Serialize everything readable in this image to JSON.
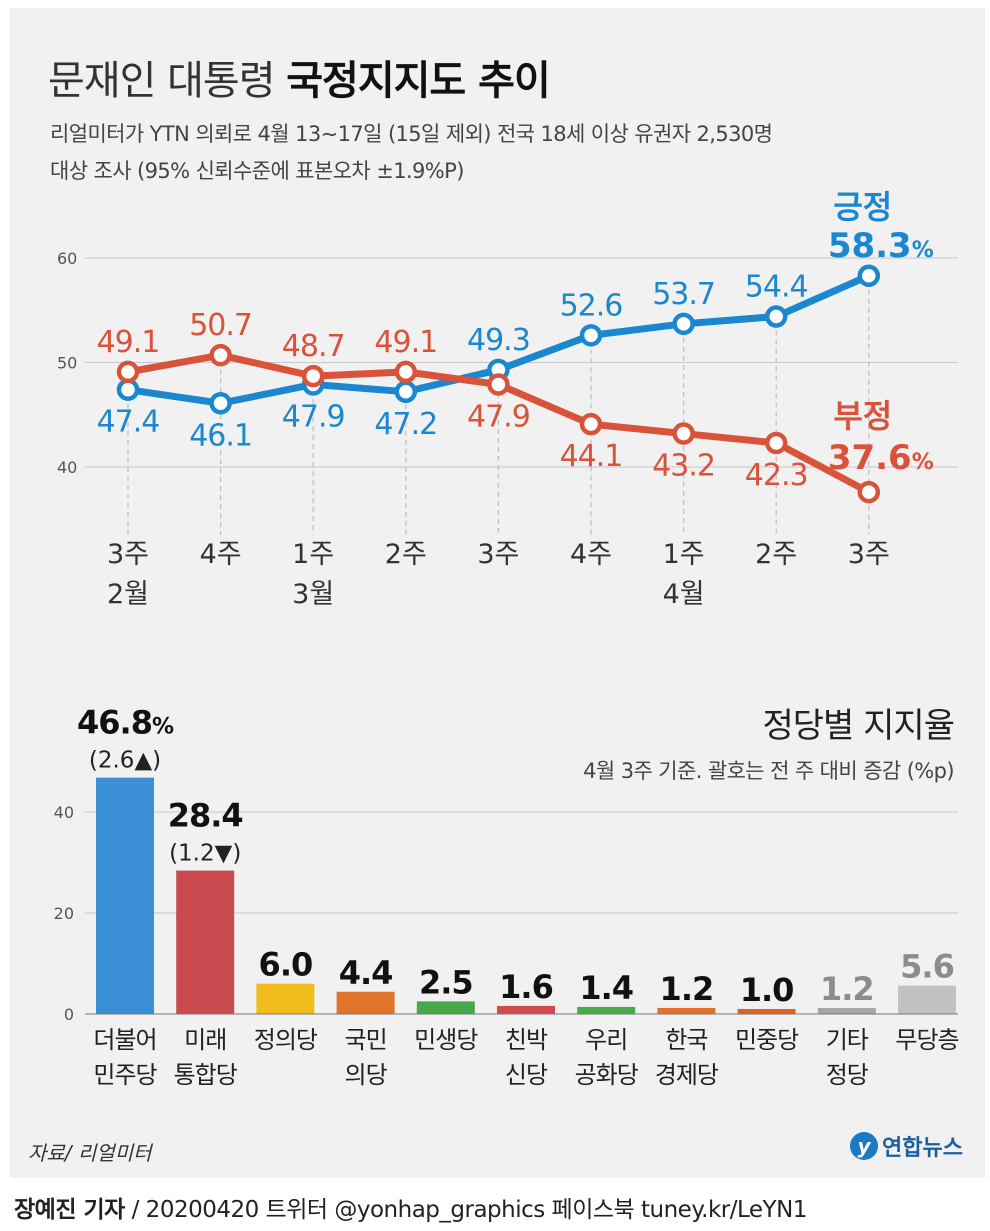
{
  "header": {
    "title_light": "문재인 대통령 ",
    "title_bold": "국정지지도 추이",
    "subtitle_line1": "리얼미터가 YTN 의뢰로 4월 13∼17일 (15일 제외) 전국 18세 이상 유권자 2,530명",
    "subtitle_line2": "대상 조사 (95% 신뢰수준에 표본오차 ±1.9%P)"
  },
  "chart_data": [
    {
      "type": "line",
      "categories": [
        "3주",
        "4주",
        "1주",
        "2주",
        "3주",
        "4주",
        "1주",
        "2주",
        "3주"
      ],
      "month_labels": [
        {
          "index": 0,
          "label": "2월"
        },
        {
          "index": 2,
          "label": "3월"
        },
        {
          "index": 6,
          "label": "4월"
        }
      ],
      "series": [
        {
          "name": "긍정",
          "color": "#1a87cf",
          "values": [
            47.4,
            46.1,
            47.9,
            47.2,
            49.3,
            52.6,
            53.7,
            54.4,
            58.3
          ],
          "final_label": "58.3",
          "final_unit": "%"
        },
        {
          "name": "부정",
          "color": "#d9533b",
          "values": [
            49.1,
            50.7,
            48.7,
            49.1,
            47.9,
            44.1,
            43.2,
            42.3,
            37.6
          ],
          "final_label": "37.6",
          "final_unit": "%"
        }
      ],
      "yticks": [
        40,
        50,
        60
      ],
      "ylim": [
        35,
        60
      ],
      "grid": true
    },
    {
      "type": "bar",
      "title": "정당별 지지율",
      "note": "4월 3주 기준. 괄호는 전 주 대비 증감 (%p)",
      "categories": [
        [
          "더불어",
          "민주당"
        ],
        [
          "미래",
          "통합당"
        ],
        [
          "정의당"
        ],
        [
          "국민",
          "의당"
        ],
        [
          "민생당"
        ],
        [
          "친박",
          "신당"
        ],
        [
          "우리",
          "공화당"
        ],
        [
          "한국",
          "경제당"
        ],
        [
          "민중당"
        ],
        [
          "기타",
          "정당"
        ],
        [
          "무당층"
        ]
      ],
      "values": [
        46.8,
        28.4,
        6.0,
        4.4,
        2.5,
        1.6,
        1.4,
        1.2,
        1.0,
        1.2,
        5.6
      ],
      "value_labels": [
        "46.8",
        "28.4",
        "6.0",
        "4.4",
        "2.5",
        "1.6",
        "1.4",
        "1.2",
        "1.0",
        "1.2",
        "5.6"
      ],
      "colors": [
        "#3b8fd4",
        "#c94a4f",
        "#f0bd1c",
        "#e0742a",
        "#47a84a",
        "#d14c4c",
        "#4aab4a",
        "#e36f2b",
        "#e0622b",
        "#a6a6a6",
        "#c2c2c2"
      ],
      "label_colors": [
        "#111111",
        "#111111",
        "#111111",
        "#111111",
        "#111111",
        "#111111",
        "#111111",
        "#111111",
        "#111111",
        "#8c8c8c",
        "#8c8c8c"
      ],
      "first_unit": "%",
      "changes": [
        {
          "index": 0,
          "value": "2.6",
          "direction": "up"
        },
        {
          "index": 1,
          "value": "1.2",
          "direction": "down"
        }
      ],
      "yticks": [
        0,
        20,
        40
      ],
      "ylim": [
        0,
        50
      ],
      "grid": true
    }
  ],
  "footer": {
    "source": "자료/ 리얼미터",
    "logo_mark": "y",
    "logo_name": "연합뉴스",
    "credit_bold": "장예진 기자",
    "credit_rest": " / 20200420 트위터 @yonhap_graphics  페이스북 tuney.kr/LeYN1"
  }
}
